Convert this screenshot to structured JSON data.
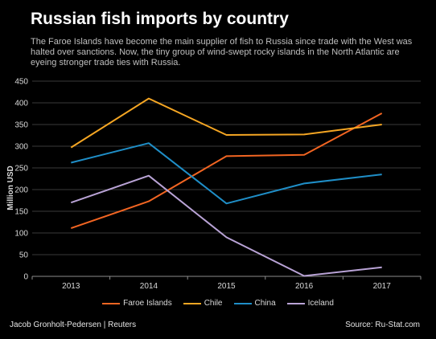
{
  "chart_data": {
    "type": "line",
    "title": "Russian fish imports by country",
    "subtitle": "The Faroe Islands have become the main supplier of fish to Russia since trade with the West was halted over sanctions. Now, the tiny group of wind-swept rocky islands in the North Atlantic are eyeing stronger trade ties with Russia.",
    "ylabel": "Million USD",
    "xlabel": "",
    "categories": [
      "2013",
      "2014",
      "2015",
      "2016",
      "2017"
    ],
    "ylim": [
      0,
      450
    ],
    "yticks": [
      0,
      50,
      100,
      150,
      200,
      250,
      300,
      350,
      400,
      450
    ],
    "grid": true,
    "legend_placement": "bottom",
    "series": [
      {
        "name": "Faroe Islands",
        "color": "#f26522",
        "values": [
          111,
          173,
          277,
          280,
          376
        ]
      },
      {
        "name": "Chile",
        "color": "#f5a623",
        "values": [
          297,
          410,
          326,
          327,
          350
        ]
      },
      {
        "name": "China",
        "color": "#1f8ec7",
        "values": [
          262,
          307,
          168,
          214,
          235
        ]
      },
      {
        "name": "Iceland",
        "color": "#b9a3d6",
        "values": [
          170,
          232,
          90,
          1,
          21
        ]
      }
    ]
  },
  "footer": {
    "credit": "Jacob Gronholt-Pedersen | Reuters",
    "source": "Source: Ru-Stat.com"
  }
}
